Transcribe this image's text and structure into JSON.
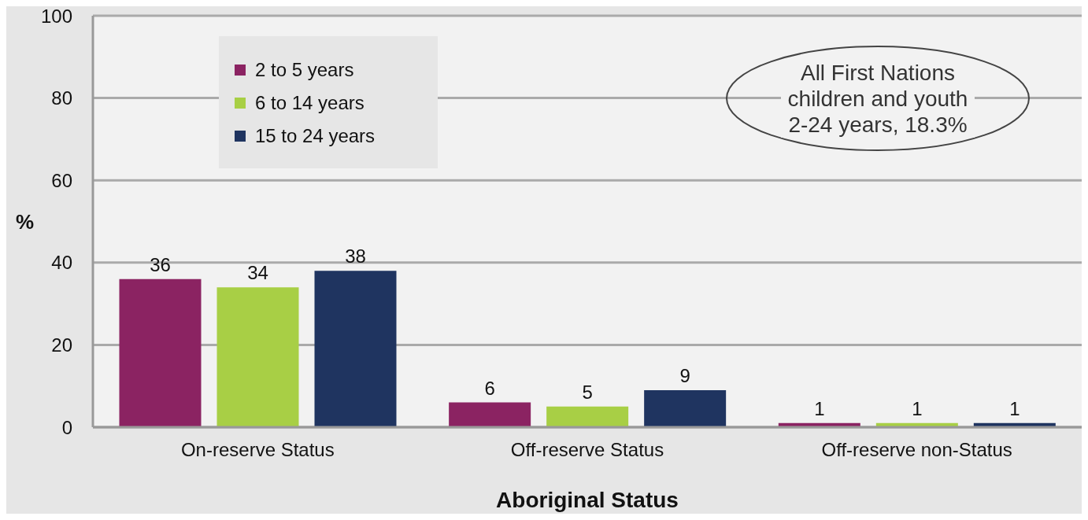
{
  "chart_data": {
    "type": "bar",
    "xlabel": "Aboriginal Status",
    "ylabel": "%",
    "categories": [
      "On-reserve Status",
      "Off-reserve Status",
      "Off-reserve non-Status"
    ],
    "series": [
      {
        "name": "2 to 5 years",
        "color": "#8b2362",
        "values": [
          36,
          6,
          1
        ]
      },
      {
        "name": "6 to 14 years",
        "color": "#a8cf45",
        "values": [
          34,
          5,
          1
        ]
      },
      {
        "name": "15 to 24 years",
        "color": "#1f3460",
        "values": [
          38,
          9,
          1
        ]
      }
    ],
    "ylim": [
      0,
      100
    ],
    "yticks": [
      0,
      20,
      40,
      60,
      80,
      100
    ],
    "grid": "y",
    "legend": "top left",
    "data_labels": true,
    "annotations": [
      "All First Nations children and youth 2-24 years, 18.3%"
    ]
  }
}
